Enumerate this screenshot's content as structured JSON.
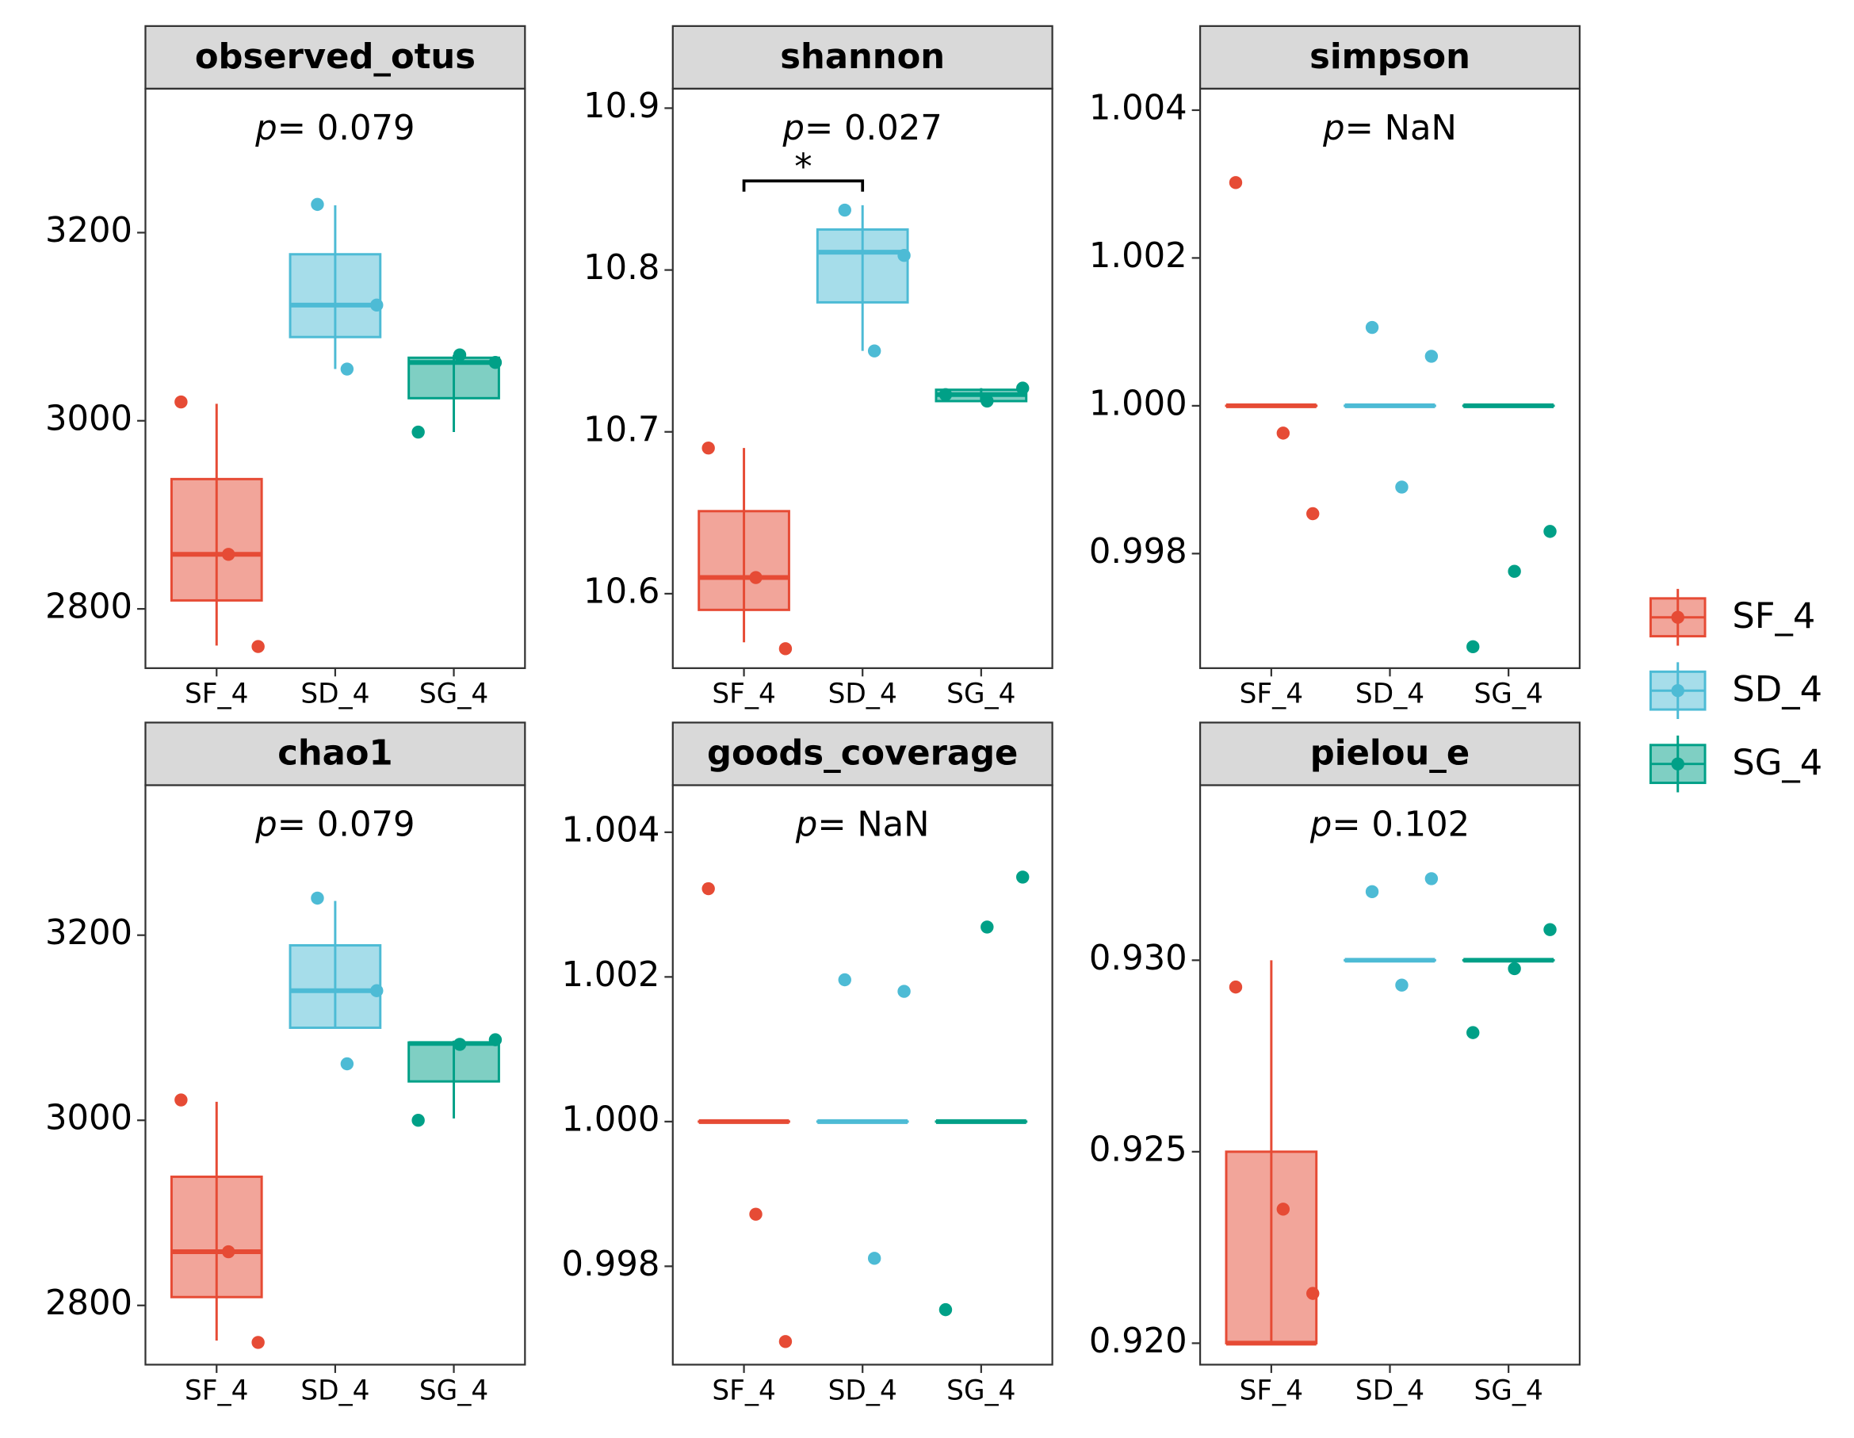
{
  "chart_data": [
    {
      "type": "box",
      "title": "observed_otus",
      "annotation": {
        "symbol": "p",
        "text": "= 0.079"
      },
      "categories": [
        "SF_4",
        "SD_4",
        "SG_4"
      ],
      "series": [
        {
          "color": "#e64b35",
          "min": 2761,
          "q1": 2809,
          "median": 2858,
          "q3": 2938,
          "max": 3018,
          "points": [
            3020,
            2858,
            2760
          ]
        },
        {
          "color": "#4dbbd5",
          "min": 3055,
          "q1": 3089,
          "median": 3123,
          "q3": 3177,
          "max": 3229,
          "points": [
            3230,
            3123,
            3055
          ]
        },
        {
          "color": "#00a087",
          "min": 2988,
          "q1": 3024,
          "median": 3062,
          "q3": 3067,
          "max": 3070,
          "points": [
            3062,
            3070,
            2988
          ]
        }
      ],
      "ylim": [
        2737,
        3353
      ],
      "yticks": [
        2800,
        3000,
        3200
      ]
    },
    {
      "type": "box",
      "title": "shannon",
      "annotation": {
        "symbol": "p",
        "text": "= 0.027"
      },
      "categories": [
        "SF_4",
        "SD_4",
        "SG_4"
      ],
      "series": [
        {
          "color": "#e64b35",
          "min": 10.57,
          "q1": 10.59,
          "median": 10.61,
          "q3": 10.651,
          "max": 10.69,
          "points": [
            10.69,
            10.61,
            10.566
          ]
        },
        {
          "color": "#4dbbd5",
          "min": 10.75,
          "q1": 10.78,
          "median": 10.811,
          "q3": 10.825,
          "max": 10.84,
          "points": [
            10.837,
            10.809,
            10.75
          ]
        },
        {
          "color": "#00a087",
          "min": 10.719,
          "q1": 10.719,
          "median": 10.723,
          "q3": 10.726,
          "max": 10.727,
          "points": [
            10.727,
            10.719,
            10.723
          ]
        }
      ],
      "significance": {
        "label": "*",
        "groups": [
          "SF_4",
          "SD_4"
        ],
        "value": 10.855
      },
      "ylim": [
        10.554,
        10.912
      ],
      "yticks": [
        10.6,
        10.7,
        10.8,
        10.9
      ]
    },
    {
      "type": "box",
      "title": "simpson",
      "annotation": {
        "symbol": "p",
        "text": "= NaN"
      },
      "categories": [
        "SF_4",
        "SD_4",
        "SG_4"
      ],
      "series": [
        {
          "color": "#e64b35",
          "min": 1,
          "q1": 1,
          "median": 1,
          "q3": 1,
          "max": 1,
          "points": [
            1.00302,
            0.99963,
            0.99854
          ]
        },
        {
          "color": "#4dbbd5",
          "min": 1,
          "q1": 1,
          "median": 1,
          "q3": 1,
          "max": 1,
          "points": [
            1.00106,
            1.00067,
            0.9989
          ]
        },
        {
          "color": "#00a087",
          "min": 1,
          "q1": 1,
          "median": 1,
          "q3": 1,
          "max": 1,
          "points": [
            0.9983,
            0.99776,
            0.99674
          ]
        }
      ],
      "ylim": [
        0.99645,
        1.00429
      ],
      "yticks": [
        0.998,
        {
          "value": 1,
          "label": "1.000"
        },
        1.002,
        1.004
      ]
    },
    {
      "type": "box",
      "title": "chao1",
      "annotation": {
        "symbol": "p",
        "text": "= 0.079"
      },
      "categories": [
        "SF_4",
        "SD_4",
        "SG_4"
      ],
      "series": [
        {
          "color": "#e64b35",
          "min": 2762,
          "q1": 2809,
          "median": 2858,
          "q3": 2939,
          "max": 3020,
          "points": [
            3022,
            2858,
            2760
          ]
        },
        {
          "color": "#4dbbd5",
          "min": 3100,
          "q1": 3100,
          "median": 3140,
          "q3": 3189,
          "max": 3237,
          "points": [
            3240,
            3140,
            3061
          ]
        },
        {
          "color": "#00a087",
          "min": 3002,
          "q1": 3042,
          "median": 3083,
          "q3": 3084,
          "max": 3086,
          "points": [
            3087,
            3082,
            3000
          ]
        }
      ],
      "ylim": [
        2736,
        3362
      ],
      "yticks": [
        2800,
        3000,
        3200
      ]
    },
    {
      "type": "box",
      "title": "goods_coverage",
      "annotation": {
        "symbol": "p",
        "text": "= NaN"
      },
      "categories": [
        "SF_4",
        "SD_4",
        "SG_4"
      ],
      "series": [
        {
          "color": "#e64b35",
          "min": 1,
          "q1": 1,
          "median": 1,
          "q3": 1,
          "max": 1,
          "points": [
            1.00322,
            0.99872,
            0.99696
          ]
        },
        {
          "color": "#4dbbd5",
          "min": 1,
          "q1": 1,
          "median": 1,
          "q3": 1,
          "max": 1,
          "points": [
            1.00196,
            1.0018,
            0.99811
          ]
        },
        {
          "color": "#00a087",
          "min": 1,
          "q1": 1,
          "median": 1,
          "q3": 1,
          "max": 1,
          "points": [
            1.00338,
            1.00269,
            0.9974
          ]
        }
      ],
      "ylim": [
        0.99664,
        1.00465
      ],
      "yticks": [
        0.998,
        {
          "value": 1,
          "label": "1.000"
        },
        1.002,
        1.004
      ]
    },
    {
      "type": "box",
      "title": "pielou_e",
      "annotation": {
        "symbol": "p",
        "text": "= 0.102"
      },
      "categories": [
        "SF_4",
        "SD_4",
        "SG_4"
      ],
      "series": [
        {
          "color": "#e64b35",
          "min": 0.92,
          "q1": 0.92,
          "median": 0.92,
          "q3": 0.925,
          "max": 0.93,
          "points": [
            0.9293,
            0.9235,
            0.9213
          ]
        },
        {
          "color": "#4dbbd5",
          "min": 0.93,
          "q1": 0.93,
          "median": 0.93,
          "q3": 0.93,
          "max": 0.93,
          "points": [
            0.93179,
            0.93213,
            0.92935
          ]
        },
        {
          "color": "#00a087",
          "min": 0.93,
          "q1": 0.93,
          "median": 0.93,
          "q3": 0.93,
          "max": 0.93,
          "points": [
            0.9308,
            0.92978,
            0.92811
          ]
        }
      ],
      "ylim": [
        0.91944,
        0.93457
      ],
      "yticks": [
        {
          "value": 0.92,
          "label": "0.920"
        },
        0.925,
        {
          "value": 0.93,
          "label": "0.930"
        }
      ]
    }
  ],
  "legend": {
    "entries": [
      {
        "name": "SF_4",
        "color": "#e64b35"
      },
      {
        "name": "SD_4",
        "color": "#4dbbd5"
      },
      {
        "name": "SG_4",
        "color": "#00a087"
      }
    ]
  }
}
